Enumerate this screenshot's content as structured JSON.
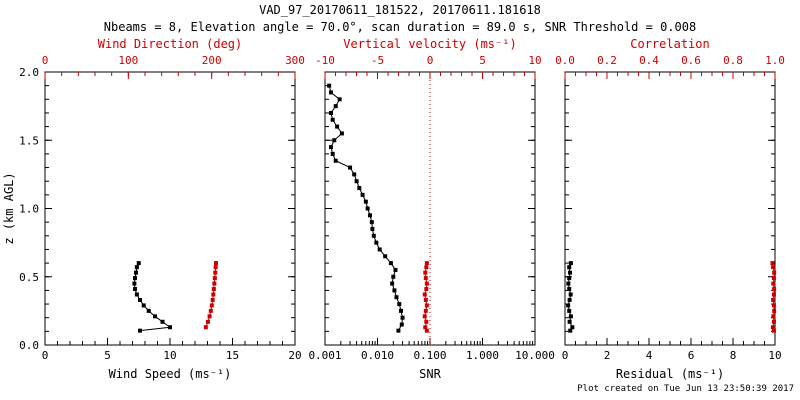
{
  "header": {
    "title": "VAD_97_20170611_181522, 20170611.181618",
    "subtitle": "Nbeams = 8, Elevation angle = 70.0°, scan duration = 89.0 s, SNR Threshold = 0.008"
  },
  "footer": {
    "created": "Plot created on Tue Jun 13 23:50:39 2017"
  },
  "colors": {
    "red": "#cc0000",
    "black": "#000000",
    "background": "#ffffff"
  },
  "chart_data": [
    {
      "type": "line",
      "name": "wind-panel",
      "y_axis": {
        "label": "z (km AGL)",
        "lim": [
          0,
          2
        ],
        "ticks": [
          0,
          0.5,
          1,
          1.5,
          2
        ],
        "tick_labels": [
          "0.0",
          "0.5",
          "1.0",
          "1.5",
          "2.0"
        ]
      },
      "bottom_axis": {
        "label": "Wind Speed (ms⁻¹)",
        "scale": "linear",
        "lim": [
          0,
          20
        ],
        "ticks": [
          0,
          5,
          10,
          15,
          20
        ],
        "tick_labels": [
          "0",
          "5",
          "10",
          "15",
          "20"
        ],
        "minor_step": 1
      },
      "top_axis": {
        "label": "Wind Direction (deg)",
        "scale": "linear",
        "lim": [
          0,
          300
        ],
        "ticks": [
          0,
          100,
          200,
          300
        ],
        "tick_labels": [
          "0",
          "100",
          "200",
          "300"
        ],
        "minor_step": 20
      },
      "series": [
        {
          "name": "wind-speed",
          "axis": "bottom",
          "color": "black",
          "line": true,
          "marker": true,
          "points": [
            [
              7.6,
              0.105
            ],
            [
              10.0,
              0.13
            ],
            [
              9.4,
              0.17
            ],
            [
              8.8,
              0.21
            ],
            [
              8.3,
              0.25
            ],
            [
              7.9,
              0.29
            ],
            [
              7.6,
              0.33
            ],
            [
              7.35,
              0.37
            ],
            [
              7.2,
              0.41
            ],
            [
              7.15,
              0.45
            ],
            [
              7.2,
              0.49
            ],
            [
              7.28,
              0.53
            ],
            [
              7.35,
              0.57
            ],
            [
              7.5,
              0.6
            ]
          ]
        },
        {
          "name": "wind-direction",
          "axis": "top",
          "color": "red",
          "line": true,
          "marker": true,
          "points": [
            [
              193,
              0.13
            ],
            [
              195.5,
              0.17
            ],
            [
              197.5,
              0.21
            ],
            [
              199,
              0.25
            ],
            [
              200.2,
              0.29
            ],
            [
              201.2,
              0.33
            ],
            [
              202,
              0.37
            ],
            [
              202.6,
              0.41
            ],
            [
              203.2,
              0.45
            ],
            [
              203.8,
              0.49
            ],
            [
              204.3,
              0.53
            ],
            [
              204.8,
              0.57
            ],
            [
              205.2,
              0.6
            ]
          ]
        }
      ]
    },
    {
      "type": "line",
      "name": "snr-panel",
      "y_axis": {
        "label": "",
        "lim": [
          0,
          2
        ],
        "ticks": [
          0,
          0.5,
          1,
          1.5,
          2
        ],
        "tick_labels": null
      },
      "bottom_axis": {
        "label": "SNR",
        "scale": "log",
        "lim": [
          0.001,
          10
        ],
        "ticks": [
          0.001,
          0.01,
          0.1,
          1,
          10
        ],
        "tick_labels": [
          "0.001",
          "0.010",
          "0.100",
          "1.000",
          "10.000"
        ]
      },
      "top_axis": {
        "label": "Vertical velocity (ms⁻¹)",
        "scale": "linear",
        "lim": [
          -10,
          10
        ],
        "ticks": [
          -10,
          -5,
          0,
          5,
          10
        ],
        "tick_labels": [
          "-10",
          "-5",
          "0",
          "5",
          "10"
        ],
        "minor_step": 1
      },
      "ref_line": {
        "axis": "top",
        "value": 0,
        "style": "dotted",
        "color": "red"
      },
      "series": [
        {
          "name": "snr-profile",
          "axis": "bottom",
          "color": "black",
          "line": true,
          "marker": true,
          "points": [
            [
              0.025,
              0.105
            ],
            [
              0.029,
              0.15
            ],
            [
              0.03,
              0.2
            ],
            [
              0.028,
              0.25
            ],
            [
              0.026,
              0.3
            ],
            [
              0.023,
              0.35
            ],
            [
              0.021,
              0.4
            ],
            [
              0.019,
              0.45
            ],
            [
              0.02,
              0.5
            ],
            [
              0.022,
              0.55
            ],
            [
              0.018,
              0.6
            ],
            [
              0.014,
              0.65
            ],
            [
              0.011,
              0.7
            ],
            [
              0.0095,
              0.75
            ],
            [
              0.0085,
              0.8
            ],
            [
              0.008,
              0.85
            ],
            [
              0.0078,
              0.9
            ],
            [
              0.0072,
              0.95
            ],
            [
              0.0065,
              1.0
            ],
            [
              0.006,
              1.05
            ],
            [
              0.0052,
              1.1
            ],
            [
              0.0045,
              1.15
            ],
            [
              0.004,
              1.2
            ],
            [
              0.0036,
              1.25
            ],
            [
              0.003,
              1.3
            ],
            [
              0.0016,
              1.35
            ],
            [
              0.0014,
              1.4
            ],
            [
              0.0013,
              1.45
            ],
            [
              0.0015,
              1.5
            ],
            [
              0.0021,
              1.55
            ],
            [
              0.0017,
              1.6
            ],
            [
              0.0014,
              1.65
            ],
            [
              0.0013,
              1.7
            ],
            [
              0.0016,
              1.75
            ],
            [
              0.0019,
              1.8
            ],
            [
              0.0013,
              1.85
            ],
            [
              0.0012,
              1.9
            ]
          ]
        },
        {
          "name": "vertical-velocity",
          "axis": "top",
          "color": "red",
          "line": true,
          "marker": true,
          "points": [
            [
              -0.3,
              0.105
            ],
            [
              -0.45,
              0.13
            ],
            [
              -0.35,
              0.17
            ],
            [
              -0.5,
              0.21
            ],
            [
              -0.4,
              0.25
            ],
            [
              -0.3,
              0.29
            ],
            [
              -0.4,
              0.33
            ],
            [
              -0.5,
              0.37
            ],
            [
              -0.35,
              0.41
            ],
            [
              -0.3,
              0.45
            ],
            [
              -0.4,
              0.49
            ],
            [
              -0.45,
              0.53
            ],
            [
              -0.35,
              0.57
            ],
            [
              -0.3,
              0.6
            ]
          ]
        }
      ]
    },
    {
      "type": "line",
      "name": "residual-panel",
      "y_axis": {
        "label": "",
        "lim": [
          0,
          2
        ],
        "ticks": [
          0,
          0.5,
          1,
          1.5,
          2
        ],
        "tick_labels": null
      },
      "bottom_axis": {
        "label": "Residual (ms⁻¹)",
        "scale": "linear",
        "lim": [
          0,
          10
        ],
        "ticks": [
          0,
          2,
          4,
          6,
          8,
          10
        ],
        "tick_labels": [
          "0",
          "2",
          "4",
          "6",
          "8",
          "10"
        ],
        "minor_step": 0.5
      },
      "top_axis": {
        "label": "Correlation",
        "scale": "linear",
        "lim": [
          0,
          1
        ],
        "ticks": [
          0,
          0.2,
          0.4,
          0.6,
          0.8,
          1
        ],
        "tick_labels": [
          "0.0",
          "0.2",
          "0.4",
          "0.6",
          "0.8",
          "1.0"
        ],
        "minor_step": 0.05
      },
      "series": [
        {
          "name": "residual",
          "axis": "bottom",
          "color": "black",
          "line": true,
          "marker": true,
          "points": [
            [
              0.25,
              0.105
            ],
            [
              0.35,
              0.13
            ],
            [
              0.22,
              0.17
            ],
            [
              0.28,
              0.21
            ],
            [
              0.2,
              0.25
            ],
            [
              0.15,
              0.29
            ],
            [
              0.22,
              0.33
            ],
            [
              0.27,
              0.37
            ],
            [
              0.2,
              0.41
            ],
            [
              0.16,
              0.45
            ],
            [
              0.2,
              0.49
            ],
            [
              0.24,
              0.53
            ],
            [
              0.2,
              0.57
            ],
            [
              0.28,
              0.6
            ]
          ]
        },
        {
          "name": "correlation",
          "axis": "top",
          "color": "red",
          "line": true,
          "marker": true,
          "points": [
            [
              0.995,
              0.105
            ],
            [
              0.99,
              0.13
            ],
            [
              0.995,
              0.17
            ],
            [
              0.992,
              0.21
            ],
            [
              0.996,
              0.25
            ],
            [
              0.995,
              0.29
            ],
            [
              0.991,
              0.33
            ],
            [
              0.995,
              0.37
            ],
            [
              0.996,
              0.41
            ],
            [
              0.992,
              0.45
            ],
            [
              0.995,
              0.49
            ],
            [
              0.996,
              0.53
            ],
            [
              0.991,
              0.57
            ],
            [
              0.988,
              0.6
            ]
          ]
        }
      ]
    }
  ]
}
